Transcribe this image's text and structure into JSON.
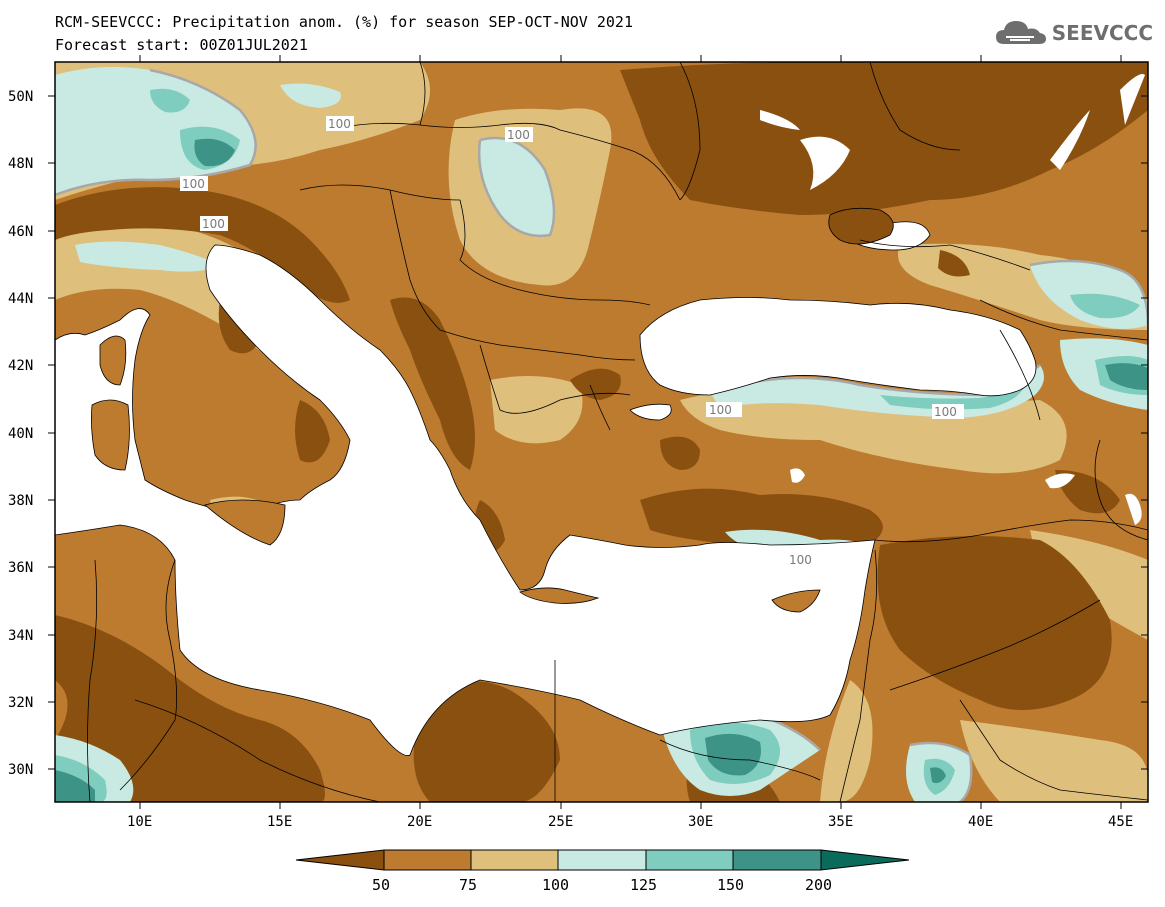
{
  "header": {
    "title_line1": "RCM-SEEVCCC: Precipitation anom. (%) for season SEP-OCT-NOV 2021",
    "title_line2": "Forecast start: 00Z01JUL2021",
    "logo_text": "SEEVCCC"
  },
  "axes": {
    "lat_labels": [
      "50N",
      "48N",
      "46N",
      "44N",
      "42N",
      "40N",
      "38N",
      "36N",
      "34N",
      "32N",
      "30N"
    ],
    "lon_labels": [
      "10E",
      "15E",
      "20E",
      "25E",
      "30E",
      "35E",
      "40E",
      "45E"
    ]
  },
  "contour_labels": [
    "100",
    "100",
    "100",
    "100",
    "100",
    "100",
    "100"
  ],
  "colorbar": {
    "labels": [
      "50",
      "75",
      "100",
      "125",
      "150",
      "200"
    ],
    "colors": [
      "#8a5010",
      "#bd7b30",
      "#dfbf7c",
      "#c8eae2",
      "#7ecdbe",
      "#3d9486",
      "#0a6b5c"
    ]
  },
  "colors": {
    "very_dry": "#8a5010",
    "dry": "#bd7b30",
    "slightly_dry": "#dfbf7c",
    "slightly_wet": "#c8eae2",
    "wet": "#7ecdbe",
    "very_wet": "#3d9486",
    "sea": "#ffffff"
  }
}
